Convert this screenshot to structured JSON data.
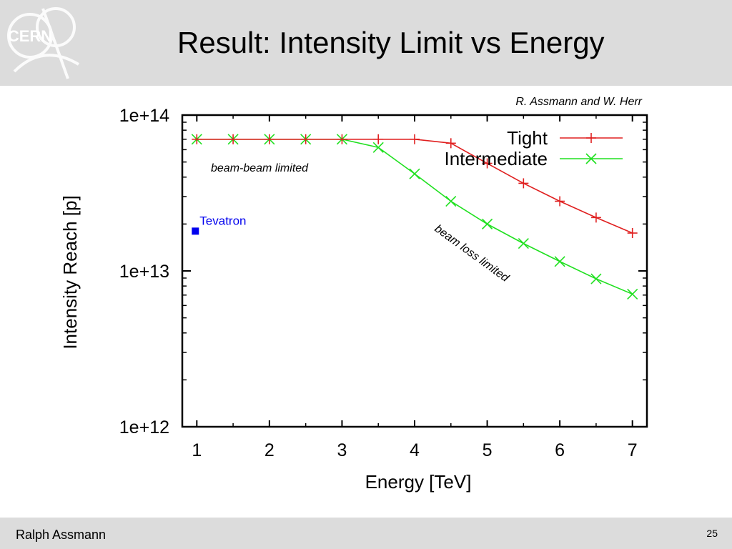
{
  "slide": {
    "title": "Result: Intensity Limit vs Energy",
    "credit": "R. Assmann and W. Herr",
    "footer_author": "Ralph Assmann",
    "page_number": "25",
    "logo_text": "CERN"
  },
  "colors": {
    "header_bg": "#dcdcdc",
    "tight": "#e02020",
    "intermediate": "#20e020",
    "tevatron": "#0000ee"
  },
  "chart_data": {
    "type": "line",
    "xlabel": "Energy [TeV]",
    "ylabel": "Intensity Reach [p]",
    "xlim": [
      0.8,
      7.2
    ],
    "ylim": [
      1000000000000.0,
      100000000000000.0
    ],
    "yscale": "log",
    "xticks": [
      1,
      2,
      3,
      4,
      5,
      6,
      7
    ],
    "xtick_labels": [
      "1",
      "2",
      "3",
      "4",
      "5",
      "6",
      "7"
    ],
    "yticks": [
      1000000000000.0,
      10000000000000.0,
      100000000000000.0
    ],
    "ytick_labels": [
      "1e+12",
      "1e+13",
      "1e+14"
    ],
    "legend_position": "top-right",
    "series": [
      {
        "name": "Tight",
        "marker": "plus",
        "color": "#e02020",
        "x": [
          1,
          1.5,
          2,
          2.5,
          3,
          3.5,
          4,
          4.5,
          5,
          5.5,
          6,
          6.5,
          7
        ],
        "y": [
          70000000000000.0,
          70000000000000.0,
          70000000000000.0,
          70000000000000.0,
          70000000000000.0,
          70000000000000.0,
          70000000000000.0,
          66000000000000.0,
          49000000000000.0,
          36500000000000.0,
          28000000000000.0,
          22000000000000.0,
          17500000000000.0
        ]
      },
      {
        "name": "Intermediate",
        "marker": "cross",
        "color": "#20e020",
        "x": [
          1,
          1.5,
          2,
          2.5,
          3,
          3.5,
          4,
          4.5,
          5,
          5.5,
          6,
          6.5,
          7
        ],
        "y": [
          70000000000000.0,
          70000000000000.0,
          70000000000000.0,
          70000000000000.0,
          70000000000000.0,
          62000000000000.0,
          42000000000000.0,
          28000000000000.0,
          20000000000000.0,
          15000000000000.0,
          11500000000000.0,
          8900000000000.0,
          7100000000000.0
        ]
      }
    ],
    "points": [
      {
        "label": "Tevatron",
        "x": 0.98,
        "y": 18000000000000.0,
        "color": "#0000ee"
      }
    ],
    "annotations": [
      {
        "text": "beam-beam limited"
      },
      {
        "text": "beam loss limited"
      }
    ]
  }
}
